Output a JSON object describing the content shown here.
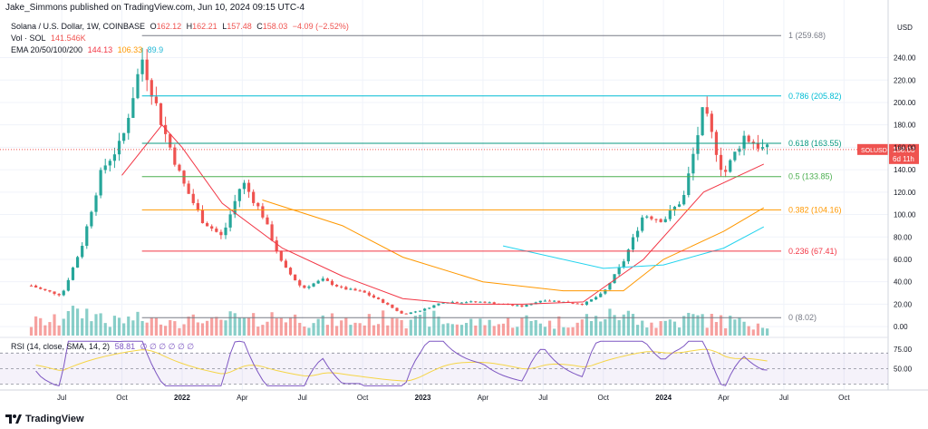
{
  "header": {
    "author_line": "Jake_Simmons published on TradingView.com, Jun 10, 2024 09:15 UTC-4"
  },
  "legend": {
    "symbol": "Solana / U.S. Dollar, 1W, COINBASE",
    "o_label": "O",
    "o_val": "162.12",
    "h_label": "H",
    "h_val": "162.21",
    "l_label": "L",
    "l_val": "157.48",
    "c_label": "C",
    "c_val": "158.03",
    "change": "−4.09 (−2.52%)",
    "vol_label": "Vol · SOL",
    "vol_val": "141.546K",
    "ema_label": "EMA 20/50/100/200",
    "ema20": "144.13",
    "ema50": "106.33",
    "ema100": "89.9",
    "rsi_label": "RSI (14, close, SMA, 14, 2)",
    "rsi_val": "58.81",
    "rsi_na": "∅ ∅ ∅ ∅ ∅ ∅"
  },
  "footer": {
    "brand": "TradingView",
    "logo_icon": "tradingview-logo-icon"
  },
  "colors": {
    "up": "#26a69a",
    "down": "#ef5350",
    "ema20": "#f23645",
    "ema50": "#ff9800",
    "ema100": "#22d3ee",
    "rsi": "#7e57c2",
    "rsi_sma": "#f5d547",
    "fib_1": "#787b86",
    "fib_786": "#00bcd4",
    "fib_618": "#089981",
    "fib_5": "#4caf50",
    "fib_382": "#ff9800",
    "fib_236": "#f23645",
    "fib_0": "#787b86"
  },
  "chart_data": {
    "type": "candlestick",
    "timeframe": "1W",
    "y_axis": {
      "title": "USD",
      "scale": "linear",
      "range": [
        -8,
        272
      ],
      "ticks": [
        0,
        20,
        40,
        60,
        80,
        100,
        120,
        140,
        160,
        180,
        200,
        220,
        240
      ],
      "tick_labels": [
        "0.00",
        "20.00",
        "40.00",
        "60.00",
        "80.00",
        "100.00",
        "120.00",
        "140.00",
        "160.00",
        "180.00",
        "200.00",
        "220.00",
        "240.00"
      ]
    },
    "x_axis": {
      "tick_labels": [
        "Jul",
        "Oct",
        "2022",
        "Apr",
        "Jul",
        "Oct",
        "2023",
        "Apr",
        "Jul",
        "Oct",
        "2024",
        "Apr",
        "Jul",
        "Oct"
      ],
      "tick_dates": [
        "2021-07",
        "2021-10",
        "2022-01",
        "2022-04",
        "2022-07",
        "2022-10",
        "2023-01",
        "2023-04",
        "2023-07",
        "2023-10",
        "2024-01",
        "2024-04",
        "2024-07",
        "2024-10"
      ]
    },
    "last_price": {
      "label": "SOLUSD",
      "value": "158.03",
      "countdown": "6d 11h"
    },
    "fib_levels": [
      {
        "ratio": "1",
        "value": 259.68,
        "label": "1 (259.68)"
      },
      {
        "ratio": "0.786",
        "value": 205.82,
        "label": "0.786 (205.82)"
      },
      {
        "ratio": "0.618",
        "value": 163.55,
        "label": "0.618 (163.55)"
      },
      {
        "ratio": "0.5",
        "value": 133.85,
        "label": "0.5 (133.85)"
      },
      {
        "ratio": "0.382",
        "value": 104.16,
        "label": "0.382 (104.16)"
      },
      {
        "ratio": "0.236",
        "value": 67.41,
        "label": "0.236 (67.41)"
      },
      {
        "ratio": "0",
        "value": 8.02,
        "label": "0 (8.02)"
      }
    ],
    "price_series": [
      {
        "t": "2021-05",
        "close": 40
      },
      {
        "t": "2021-06",
        "close": 33
      },
      {
        "t": "2021-07",
        "close": 28
      },
      {
        "t": "2021-08",
        "close": 72
      },
      {
        "t": "2021-09",
        "close": 140
      },
      {
        "t": "2021-10",
        "close": 165
      },
      {
        "t": "2021-11",
        "close": 240
      },
      {
        "t": "2021-12",
        "close": 180
      },
      {
        "t": "2022-01",
        "close": 130
      },
      {
        "t": "2022-02",
        "close": 95
      },
      {
        "t": "2022-03",
        "close": 80
      },
      {
        "t": "2022-04",
        "close": 130
      },
      {
        "t": "2022-05",
        "close": 100
      },
      {
        "t": "2022-06",
        "close": 55
      },
      {
        "t": "2022-07",
        "close": 34
      },
      {
        "t": "2022-08",
        "close": 42
      },
      {
        "t": "2022-09",
        "close": 34
      },
      {
        "t": "2022-10",
        "close": 31
      },
      {
        "t": "2022-11",
        "close": 22
      },
      {
        "t": "2022-12",
        "close": 11
      },
      {
        "t": "2023-01",
        "close": 15
      },
      {
        "t": "2023-02",
        "close": 22
      },
      {
        "t": "2023-03",
        "close": 22
      },
      {
        "t": "2023-04",
        "close": 22
      },
      {
        "t": "2023-05",
        "close": 20
      },
      {
        "t": "2023-06",
        "close": 18
      },
      {
        "t": "2023-07",
        "close": 24
      },
      {
        "t": "2023-08",
        "close": 22
      },
      {
        "t": "2023-09",
        "close": 20
      },
      {
        "t": "2023-10",
        "close": 30
      },
      {
        "t": "2023-11",
        "close": 58
      },
      {
        "t": "2023-12",
        "close": 100
      },
      {
        "t": "2024-01",
        "close": 95
      },
      {
        "t": "2024-02",
        "close": 115
      },
      {
        "t": "2024-03",
        "close": 195
      },
      {
        "t": "2024-04",
        "close": 135
      },
      {
        "t": "2024-05",
        "close": 170
      },
      {
        "t": "2024-06",
        "close": 158
      }
    ],
    "ema_series": [
      {
        "name": "EMA 20",
        "points": [
          [
            "2021-10",
            135
          ],
          [
            "2021-12",
            180
          ],
          [
            "2022-01",
            160
          ],
          [
            "2022-03",
            110
          ],
          [
            "2022-06",
            70
          ],
          [
            "2022-09",
            45
          ],
          [
            "2022-12",
            25
          ],
          [
            "2023-03",
            20
          ],
          [
            "2023-06",
            20
          ],
          [
            "2023-09",
            22
          ],
          [
            "2023-12",
            60
          ],
          [
            "2024-03",
            120
          ],
          [
            "2024-06",
            145
          ]
        ]
      },
      {
        "name": "EMA 50",
        "points": [
          [
            "2022-05",
            113
          ],
          [
            "2022-09",
            90
          ],
          [
            "2022-12",
            62
          ],
          [
            "2023-04",
            40
          ],
          [
            "2023-08",
            32
          ],
          [
            "2023-11",
            32
          ],
          [
            "2024-01",
            60
          ],
          [
            "2024-04",
            85
          ],
          [
            "2024-06",
            106
          ]
        ]
      },
      {
        "name": "EMA 100",
        "points": [
          [
            "2023-05",
            72
          ],
          [
            "2023-10",
            52
          ],
          [
            "2024-01",
            55
          ],
          [
            "2024-04",
            70
          ],
          [
            "2024-06",
            89
          ]
        ]
      }
    ],
    "rsi": {
      "label": "RSI (14, close, SMA, 14, 2)",
      "value": 58.81,
      "ticks": [
        50,
        75
      ],
      "tick_labels": [
        "50.00",
        "75.00"
      ],
      "range": [
        25,
        90
      ]
    }
  }
}
